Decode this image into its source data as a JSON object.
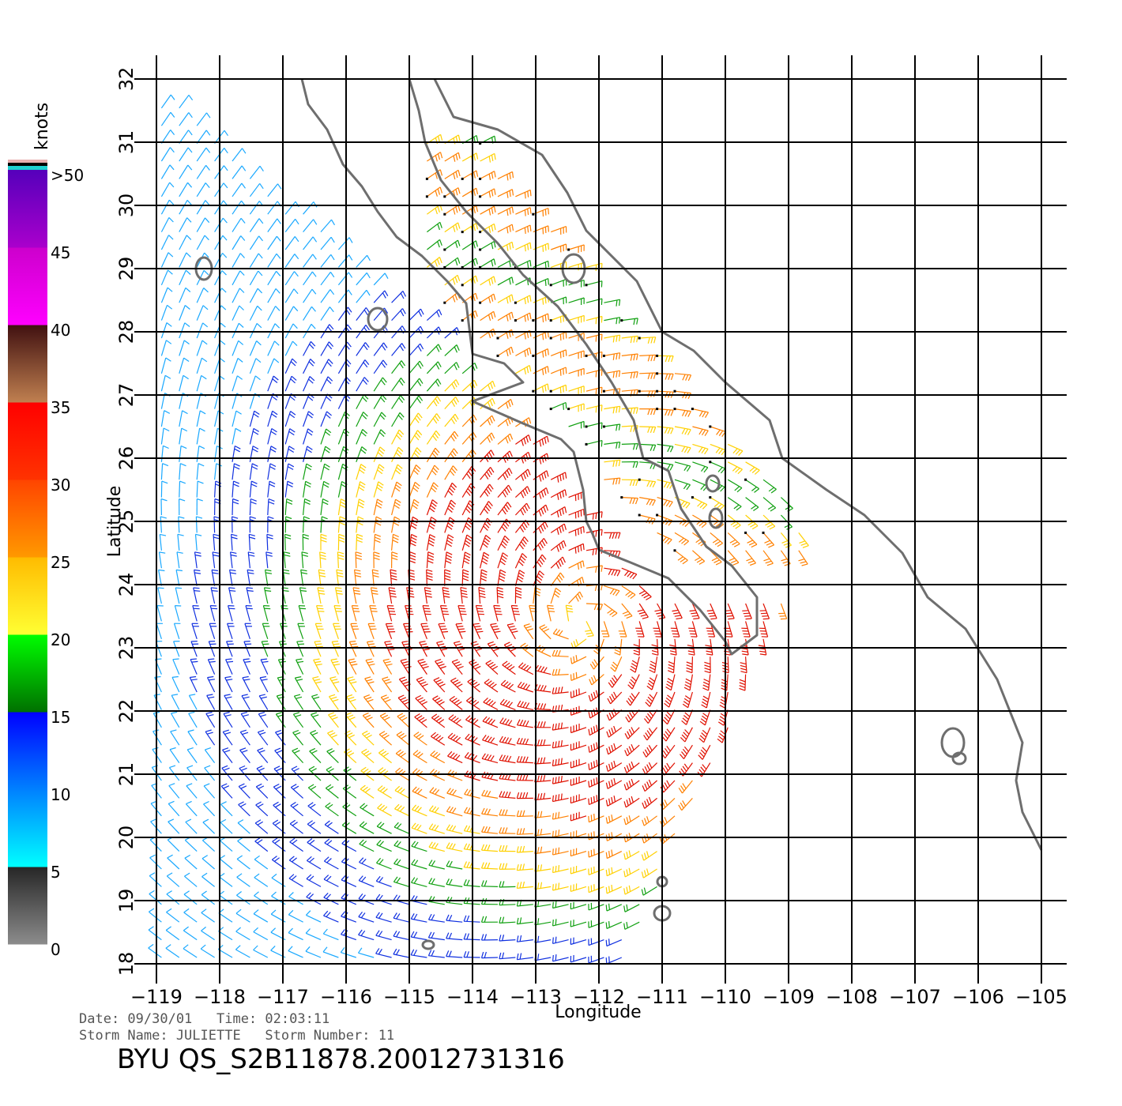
{
  "map": {
    "region": "Baja California / Gulf of California",
    "lon_range": [
      -119,
      -105
    ],
    "lat_range": [
      18,
      32
    ],
    "lon_ticks": [
      "−119",
      "−118",
      "−117",
      "−116",
      "−115",
      "−114",
      "−113",
      "−112",
      "−111",
      "−110",
      "−109",
      "−108",
      "−107",
      "−106",
      "−105"
    ],
    "lat_ticks": [
      "18",
      "19",
      "20",
      "21",
      "22",
      "23",
      "24",
      "25",
      "26",
      "27",
      "28",
      "29",
      "30",
      "31",
      "32"
    ],
    "xlabel": "Longitude",
    "ylabel": "Latitude",
    "grid": true,
    "storm_center": {
      "lon": -112.3,
      "lat": 23.4
    }
  },
  "colorbar": {
    "unit": "knots",
    "labels": [
      ">50",
      "45",
      "40",
      "35",
      "30",
      "25",
      "20",
      "15",
      "10",
      "5",
      "0"
    ],
    "bands": [
      {
        "from": 0,
        "to": 5,
        "colors": [
          "#8c8c8c",
          "#262626"
        ]
      },
      {
        "from": 5,
        "to": 10,
        "colors": [
          "#00ffff",
          "#0080ff"
        ]
      },
      {
        "from": 10,
        "to": 15,
        "colors": [
          "#0080ff",
          "#0000ff"
        ]
      },
      {
        "from": 15,
        "to": 20,
        "colors": [
          "#007000",
          "#00ff00"
        ]
      },
      {
        "from": 20,
        "to": 25,
        "colors": [
          "#ffff33",
          "#ffbb00"
        ]
      },
      {
        "from": 25,
        "to": 30,
        "colors": [
          "#ff9900",
          "#ff4400"
        ]
      },
      {
        "from": 30,
        "to": 35,
        "colors": [
          "#ff3300",
          "#ff0000"
        ]
      },
      {
        "from": 35,
        "to": 40,
        "colors": [
          "#c08050",
          "#401010"
        ]
      },
      {
        "from": 40,
        "to": 45,
        "colors": [
          "#ff00ff",
          "#cc00cc"
        ]
      },
      {
        "from": 45,
        "to": 50,
        "colors": [
          "#aa00cc",
          "#5500bb"
        ]
      }
    ]
  },
  "footer": {
    "date_line": "Date: 09/30/01   Time: 02:03:11",
    "storm_line": "Storm Name: JULIETTE   Storm Number: 11",
    "product": "BYU QS_S2B11878.20012731316"
  },
  "colors": {
    "coastline": "#6e6e6e",
    "grid": "#000000"
  }
}
